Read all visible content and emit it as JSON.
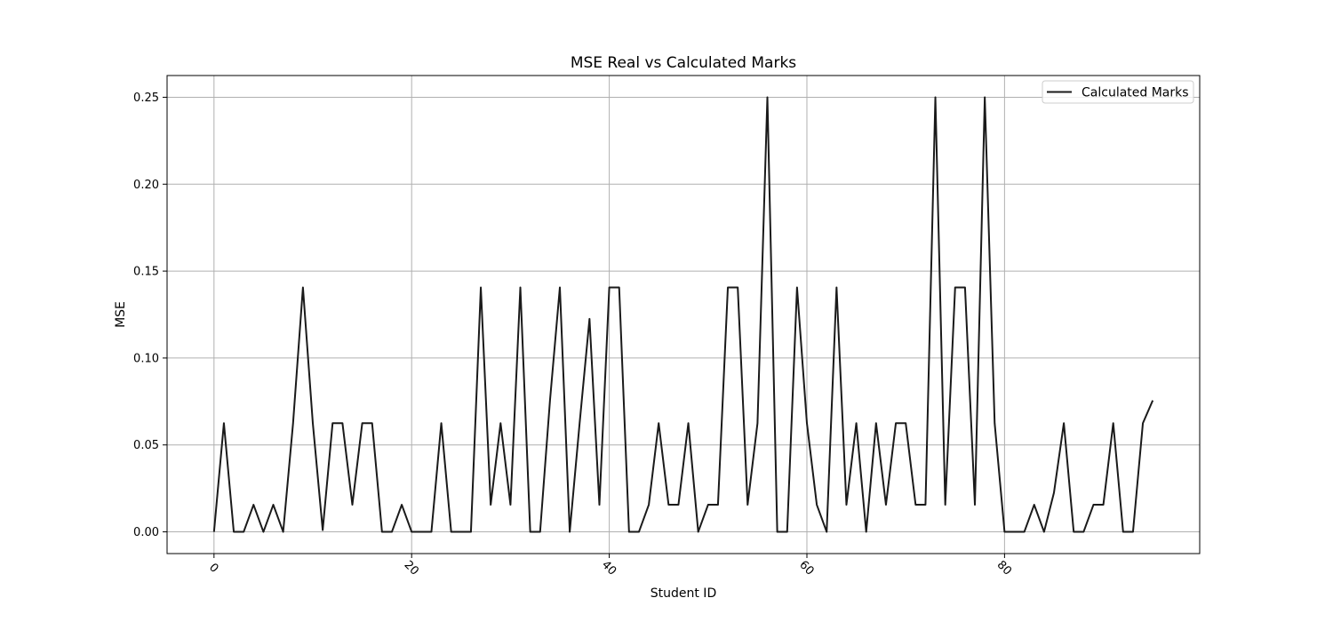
{
  "colors": {
    "line": "#1a1a1a",
    "grid": "#b0b0b0",
    "axes": "#000000",
    "background": "#ffffff"
  },
  "chart_data": {
    "type": "line",
    "title": "MSE Real vs Calculated Marks",
    "xlabel": "Student ID",
    "ylabel": "MSE",
    "xlim": [
      -4.75,
      99.75
    ],
    "ylim": [
      -0.0125,
      0.2625
    ],
    "x_ticks": [
      0,
      20,
      40,
      60,
      80
    ],
    "x_tick_labels": [
      "0",
      "20",
      "40",
      "60",
      "80"
    ],
    "y_ticks": [
      0.0,
      0.05,
      0.1,
      0.15,
      0.2,
      0.25
    ],
    "y_tick_labels": [
      "0.00",
      "0.05",
      "0.10",
      "0.15",
      "0.20",
      "0.25"
    ],
    "grid": true,
    "legend_position": "upper-right",
    "series": [
      {
        "name": "Calculated Marks",
        "x": [
          0,
          1,
          2,
          3,
          4,
          5,
          6,
          7,
          8,
          9,
          10,
          11,
          12,
          13,
          14,
          15,
          16,
          17,
          18,
          19,
          20,
          21,
          22,
          23,
          24,
          25,
          26,
          27,
          28,
          29,
          30,
          31,
          32,
          33,
          34,
          35,
          36,
          37,
          38,
          39,
          40,
          41,
          42,
          43,
          44,
          45,
          46,
          47,
          48,
          49,
          50,
          51,
          52,
          53,
          54,
          55,
          56,
          57,
          58,
          59,
          60,
          61,
          62,
          63,
          64,
          65,
          66,
          67,
          68,
          69,
          70,
          71,
          72,
          73,
          74,
          75,
          76,
          77,
          78,
          79,
          80,
          81,
          82,
          83,
          84,
          85,
          86,
          87,
          88,
          89,
          90,
          91,
          92,
          93,
          94,
          95
        ],
        "values": [
          0.0,
          0.0625,
          0.0,
          0.0,
          0.0156,
          0.0,
          0.0156,
          0.0,
          0.0625,
          0.1406,
          0.0625,
          0.001,
          0.0625,
          0.0625,
          0.0156,
          0.0625,
          0.0625,
          0.0,
          0.0,
          0.0156,
          0.0,
          0.0,
          0.0,
          0.0625,
          0.0,
          0.0,
          0.0,
          0.1406,
          0.0156,
          0.0625,
          0.0156,
          0.1406,
          0.0,
          0.0,
          0.0756,
          0.1406,
          0.0,
          0.0625,
          0.1225,
          0.0156,
          0.1406,
          0.1406,
          0.0,
          0.0,
          0.0156,
          0.0625,
          0.0156,
          0.0156,
          0.0625,
          0.0,
          0.0156,
          0.0156,
          0.1406,
          0.1406,
          0.0156,
          0.0625,
          0.25,
          0.0,
          0.0,
          0.1406,
          0.0625,
          0.0156,
          0.0,
          0.1406,
          0.0156,
          0.0625,
          0.0,
          0.0625,
          0.0156,
          0.0625,
          0.0625,
          0.0156,
          0.0156,
          0.25,
          0.0156,
          0.1406,
          0.1406,
          0.0156,
          0.25,
          0.0625,
          0.0,
          0.0,
          0.0,
          0.0156,
          0.0,
          0.0225,
          0.0625,
          0.0,
          0.0,
          0.0156,
          0.0156,
          0.0625,
          0.0,
          0.0,
          0.0625,
          0.0756
        ]
      }
    ]
  }
}
